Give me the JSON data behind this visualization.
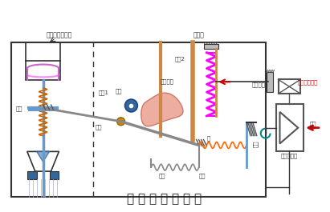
{
  "title": "气 动 阀 门 定 位 器",
  "bg_color": "#ffffff",
  "title_fontsize": 11,
  "labels": {
    "valve": "气动薄膜调节阀",
    "bellows": "波纹管",
    "pressure_input": "压力信号输入",
    "lever1": "杠杆1",
    "lever2": "杠杆2",
    "cam": "偏心凸轮",
    "roller": "滚轮",
    "flat_plate": "平板",
    "twist_rod": "扭杆",
    "axle": "轴",
    "spring": "弹簧",
    "baffle": "挡板",
    "nozzle": "喷嘴",
    "orifice": "恒节流孔",
    "amplifier": "气动放大器",
    "air_source": "气源"
  },
  "colors": {
    "outline": "#333333",
    "valve_stem": "#6699cc",
    "spring_coil": "#cc6600",
    "bellows_spring": "#ff00ff",
    "cam_fill": "#e8a090",
    "roller": "#336699",
    "orange_spring": "#ff6600",
    "dashed": "#333333"
  }
}
